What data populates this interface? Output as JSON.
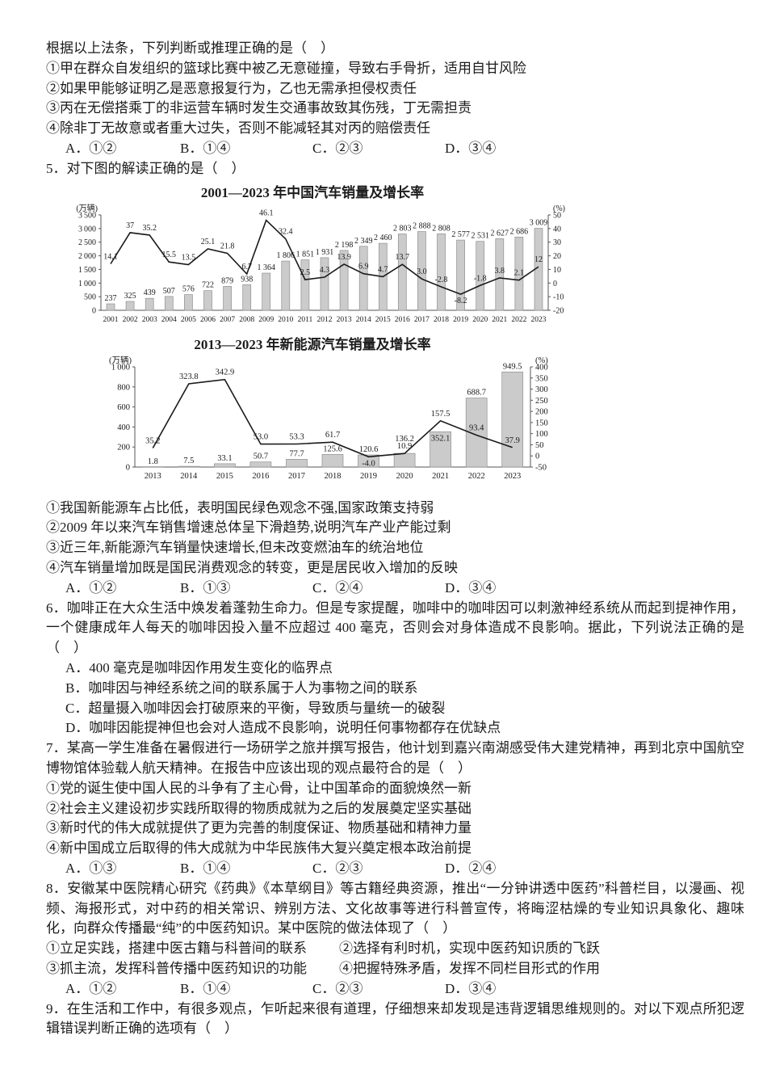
{
  "q4": {
    "stem": "根据以上法条，下列判断或推理正确的是（　）",
    "statements": [
      "①甲在群众自发组织的篮球比赛中被乙无意碰撞，导致右手骨折，适用自甘风险",
      "②如果甲能够证明乙是恶意报复行为，乙也无需承担侵权责任",
      "③丙在无偿搭乘丁的非运营车辆时发生交通事故致其伤残，丁无需担责",
      "④除非丁无故意或者重大过失，否则不能减轻其对丙的赔偿责任"
    ],
    "options": [
      "A．①②",
      "B．①④",
      "C．②③",
      "D．③④"
    ]
  },
  "q5": {
    "stem": "5．对下图的解读正确的是（　）",
    "statements": [
      "①我国新能源车占比低，表明国民绿色观念不强,国家政策支持弱",
      "②2009 年以来汽车销售增速总体呈下滑趋势,说明汽车产业产能过剩",
      "③近三年,新能源汽车销量快速增长,但未改变燃油车的统治地位",
      "④汽车销量增加既是国民消费观念的转变，更是居民收入增加的反映"
    ],
    "options": [
      "A．①②",
      "B．①③",
      "C．②④",
      "D．③④"
    ]
  },
  "q6": {
    "stem": "6．咖啡正在大众生活中焕发着蓬勃生命力。但是专家提醒，咖啡中的咖啡因可以刺激神经系统从而起到提神作用，一个健康成年人每天的咖啡因投入量不应超过 400 毫克，否则会对身体造成不良影响。据此，下列说法正确的是（　）",
    "choices": [
      "A．400 毫克是咖啡因作用发生变化的临界点",
      "B．咖啡因与神经系统之间的联系属于人为事物之间的联系",
      "C．超量摄入咖啡因会打破原来的平衡，导致质与量统一的破裂",
      "D．咖啡因能提神但也会对人造成不良影响，说明任何事物都存在优缺点"
    ]
  },
  "q7": {
    "stem": "7．某高一学生准备在暑假进行一场研学之旅并撰写报告，他计划到嘉兴南湖感受伟大建党精神，再到北京中国航空博物馆体验载人航天精神。在报告中应该出现的观点最符合的是（　）",
    "statements": [
      "①党的诞生使中国人民的斗争有了主心骨，让中国革命的面貌焕然一新",
      "②社会主义建设初步实践所取得的物质成就为之后的发展奠定坚实基础",
      "③新时代的伟大成就提供了更为完善的制度保证、物质基础和精神力量",
      "④新中国成立后取得的伟大成就为中华民族伟大复兴奠定根本政治前提"
    ],
    "options": [
      "A．①③",
      "B．①④",
      "C．②③",
      "D．②④"
    ]
  },
  "q8": {
    "stem": "8．安徽某中医院精心研究《药典》《本草纲目》等古籍经典资源，推出“一分钟讲透中医药”科普栏目，以漫画、视频、海报形式，对中药的相关常识、辨别方法、文化故事等进行科普宣传，将晦涩枯燥的专业知识具象化、趣味化，向群众传播最“纯”的中医药知识。某中医院的做法体现了（　）",
    "statements": [
      "①立足实践，搭建中医古籍与科普间的联系",
      "②选择有利时机，实现中医药知识质的飞跃",
      "③抓主流，发挥科普传播中医药知识的功能",
      "④把握特殊矛盾，发挥不同栏目形式的作用"
    ],
    "options": [
      "A．①②",
      "B．①④",
      "C．②③",
      "D．③④"
    ]
  },
  "q9": {
    "stem": "9．在生活和工作中，有很多观点，乍听起来很有道理，仔细想来却发现是违背逻辑思维规则的。对以下观点所犯逻辑错误判断正确的选项有（　）"
  },
  "chart_data": [
    {
      "type": "bar+line",
      "title": "2001—2023 年中国汽车销量及增长率",
      "categories": [
        "2001",
        "2002",
        "2003",
        "2004",
        "2005",
        "2006",
        "2007",
        "2008",
        "2009",
        "2010",
        "2011",
        "2012",
        "2013",
        "2014",
        "2015",
        "2016",
        "2017",
        "2018",
        "2019",
        "2020",
        "2021",
        "2022",
        "2023"
      ],
      "left_axis": {
        "unit": "(万辆)",
        "min": 0,
        "max": 3500,
        "step": 500
      },
      "right_axis": {
        "unit": "(%)",
        "min": -20,
        "max": 50,
        "step": 10
      },
      "grid": false,
      "legend": "none",
      "series": [
        {
          "name": "汽车销量",
          "type": "bar",
          "axis": "left",
          "values": [
            237,
            325,
            439,
            507,
            576,
            722,
            879,
            938,
            1364,
            1806,
            1851,
            1931,
            2198,
            2349,
            2460,
            2803,
            2888,
            2808,
            2577,
            2531,
            2627,
            2686,
            3009
          ],
          "labels": [
            "237",
            "325",
            "439",
            "507",
            "576",
            "722",
            "879",
            "938",
            "1 364",
            "1 806",
            "1 851",
            "1 931",
            "2 198",
            "2 349",
            "2 460",
            "2 803",
            "2 888",
            "2 808",
            "2 577",
            "2 531",
            "2 627",
            "2 686",
            "3 009"
          ]
        },
        {
          "name": "增长率",
          "type": "line",
          "axis": "right",
          "values": [
            14.1,
            37,
            35.2,
            15.5,
            13.5,
            25.1,
            21.8,
            6.7,
            46.1,
            32.4,
            2.5,
            4.3,
            13.9,
            6.9,
            4.7,
            13.7,
            3.0,
            -2.8,
            -8.2,
            -1.8,
            3.8,
            2.1,
            12
          ],
          "labels": [
            "14.1",
            "37",
            "35.2",
            "15.5",
            "13.5",
            "25.1",
            "21.8",
            "6.7",
            "46.1",
            "32.4",
            "2.5",
            "4.3",
            "13.9",
            "6.9",
            "4.7",
            "13.7",
            "3.0",
            "-2.8",
            "-8.2",
            "-1.8",
            "3.8",
            "2.1",
            "12"
          ]
        }
      ]
    },
    {
      "type": "bar+line",
      "title": "2013—2023 年新能源汽车销量及增长率",
      "categories": [
        "2013",
        "2014",
        "2015",
        "2016",
        "2017",
        "2018",
        "2019",
        "2020",
        "2021",
        "2022",
        "2023"
      ],
      "left_axis": {
        "unit": "(万辆)",
        "min": 0,
        "max": 1000,
        "step": 200
      },
      "right_axis": {
        "unit": "(%)",
        "min": -50,
        "max": 400,
        "step": 50
      },
      "grid": false,
      "legend": "none",
      "series": [
        {
          "name": "新能源汽车销量",
          "type": "bar",
          "axis": "left",
          "values": [
            1.8,
            7.5,
            33.1,
            50.7,
            77.7,
            125.6,
            120.6,
            136.2,
            352.1,
            688.7,
            949.5
          ],
          "labels": [
            "1.8",
            "7.5",
            "33.1",
            "50.7",
            "77.7",
            "125.6",
            "120.6",
            "136.2",
            "352.1",
            "688.7",
            "949.5"
          ]
        },
        {
          "name": "增长率",
          "type": "line",
          "axis": "right",
          "values": [
            35.2,
            323.8,
            342.9,
            53.0,
            53.3,
            61.7,
            -4.0,
            10.9,
            157.5,
            93.4,
            37.9
          ],
          "labels": [
            "35.2",
            "323.8",
            "342.9",
            "53.0",
            "53.3",
            "61.7",
            "-4.0",
            "10.9",
            "157.5",
            "93.4",
            "37.9"
          ]
        }
      ]
    }
  ]
}
